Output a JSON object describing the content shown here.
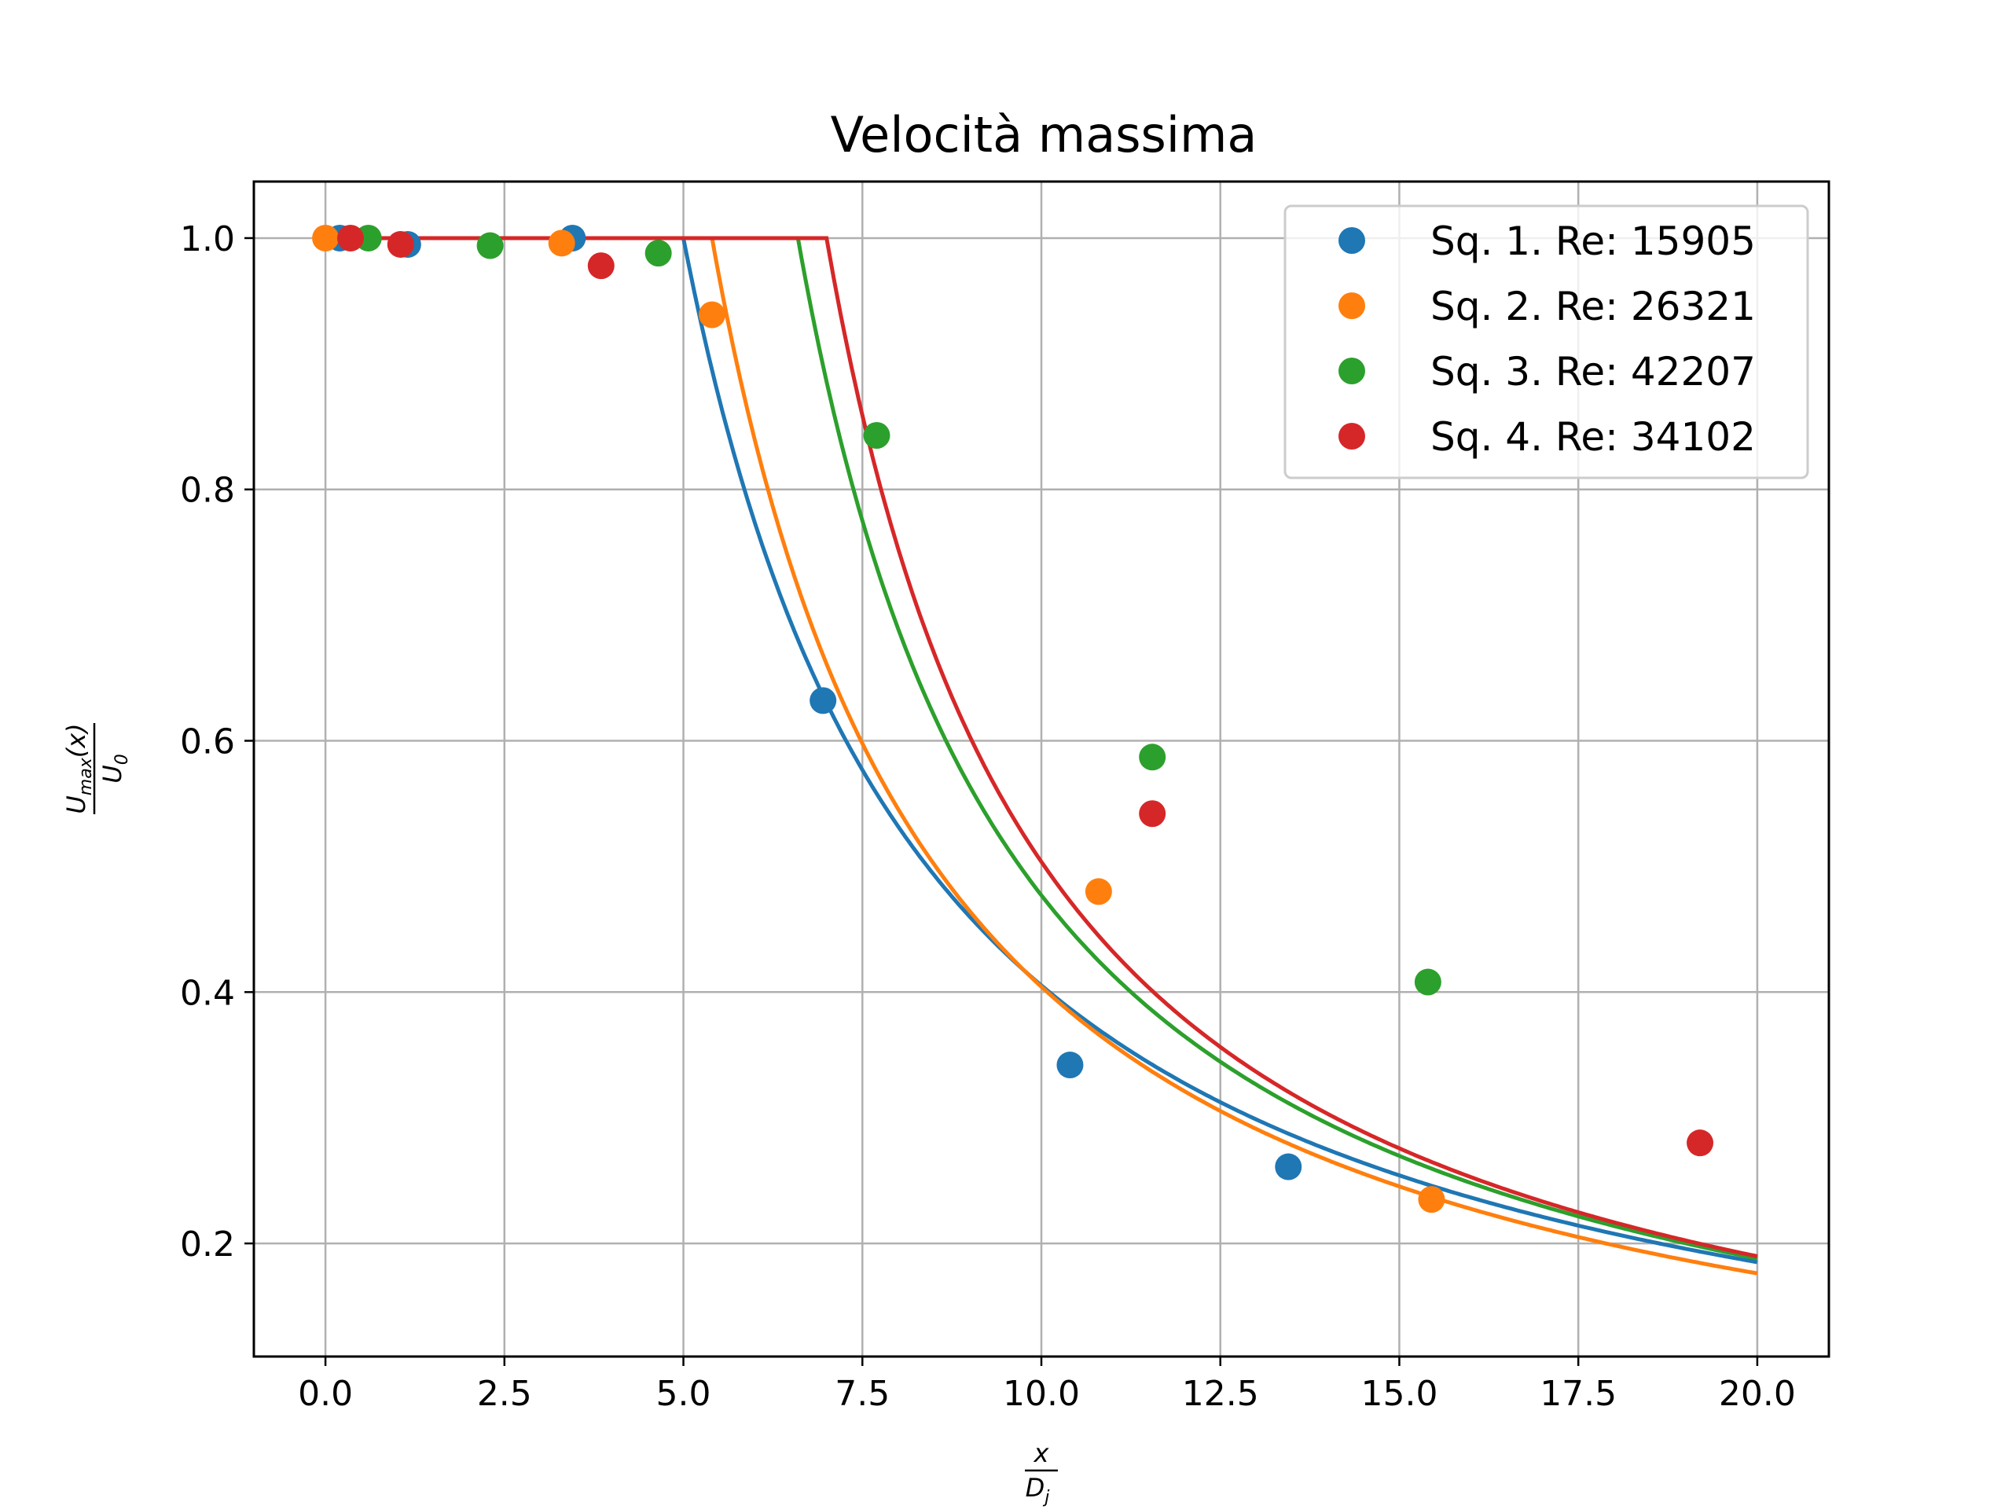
{
  "chart_data": {
    "type": "line",
    "title": "Velocità massima",
    "xlabel": {
      "num": "x",
      "den": "D",
      "den_sub": "j"
    },
    "ylabel": {
      "num": "U",
      "num_sub": "max",
      "num_suffix": "(x)",
      "den": "U",
      "den_sub": "0"
    },
    "xlim": [
      -1.0,
      21.0
    ],
    "ylim": [
      0.11,
      1.045
    ],
    "xticks": [
      0.0,
      2.5,
      5.0,
      7.5,
      10.0,
      12.5,
      15.0,
      17.5,
      20.0
    ],
    "xtick_labels": [
      "0.0",
      "2.5",
      "5.0",
      "7.5",
      "10.0",
      "12.5",
      "15.0",
      "17.5",
      "20.0"
    ],
    "yticks": [
      0.2,
      0.4,
      0.6,
      0.8,
      1.0
    ],
    "ytick_labels": [
      "0.2",
      "0.4",
      "0.6",
      "0.8",
      "1.0"
    ],
    "grid": true,
    "legend_position": "top-right",
    "series": [
      {
        "name": "Sq. 1. Re: 15905",
        "color": "#1f77b4",
        "points": [
          [
            0.2,
            1.0
          ],
          [
            1.15,
            0.995
          ],
          [
            3.45,
            1.0
          ],
          [
            6.95,
            0.632
          ],
          [
            10.4,
            0.342
          ],
          [
            13.45,
            0.261
          ]
        ],
        "fit": {
          "x0": 5.0,
          "k": 0.75,
          "xmax": 20.0
        }
      },
      {
        "name": "Sq. 2. Re: 26321",
        "color": "#ff7f0e",
        "points": [
          [
            0.0,
            1.0
          ],
          [
            3.3,
            0.996
          ],
          [
            5.4,
            0.939
          ],
          [
            10.8,
            0.48
          ],
          [
            15.45,
            0.235
          ]
        ],
        "fit": {
          "x0": 5.4,
          "k": 0.85,
          "xmax": 20.0
        }
      },
      {
        "name": "Sq. 3. Re: 42207",
        "color": "#2ca02c",
        "points": [
          [
            0.6,
            1.0
          ],
          [
            2.3,
            0.994
          ],
          [
            4.65,
            0.988
          ],
          [
            7.7,
            0.843
          ],
          [
            11.55,
            0.587
          ],
          [
            15.4,
            0.408
          ]
        ],
        "fit": {
          "x0": 6.6,
          "k": 0.95,
          "xmax": 20.0
        }
      },
      {
        "name": "Sq. 4. Re: 34102",
        "color": "#d62728",
        "points": [
          [
            0.35,
            1.0
          ],
          [
            1.05,
            0.995
          ],
          [
            3.85,
            0.978
          ],
          [
            11.55,
            0.542
          ],
          [
            19.2,
            0.28
          ]
        ],
        "fit": {
          "x0": 7.0,
          "k": 1.0,
          "xmax": 20.0
        }
      }
    ]
  }
}
